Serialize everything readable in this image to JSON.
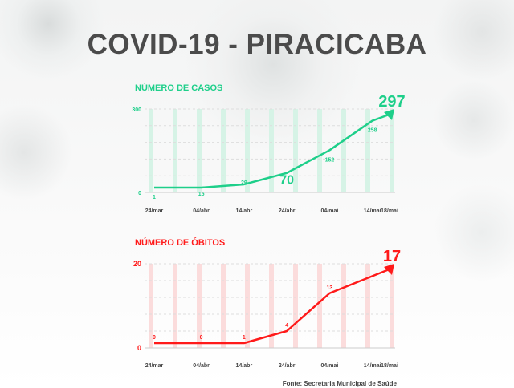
{
  "title": "COVID-19 - PIRACICABA",
  "source": "Fonte: Secretaria Municipal de Saúde",
  "chart_data": [
    {
      "type": "line",
      "title": "NÚMERO DE CASOS",
      "color": "#1ecf8a",
      "categories": [
        "24/mar",
        "04/abr",
        "14/abr",
        "24/abr",
        "04/mai",
        "14/mai",
        "18/mai"
      ],
      "values": [
        1,
        15,
        29,
        70,
        152,
        258,
        297
      ],
      "ylim": [
        0,
        300
      ],
      "yticks": [
        "0",
        "300"
      ],
      "highlight": [
        3,
        6
      ],
      "end_arrow": true
    },
    {
      "type": "line",
      "title": "NÚMERO DE ÓBITOS",
      "color": "#ff1a1a",
      "categories": [
        "24/mar",
        "04/abr",
        "14/abr",
        "24/abr",
        "04/mai",
        "14/mai",
        "18/mai"
      ],
      "values": [
        0,
        0,
        1,
        4,
        13,
        null,
        17
      ],
      "ylim": [
        0,
        20
      ],
      "yticks": [
        "0",
        "20"
      ],
      "highlight": [
        6
      ],
      "end_arrow": true
    }
  ]
}
